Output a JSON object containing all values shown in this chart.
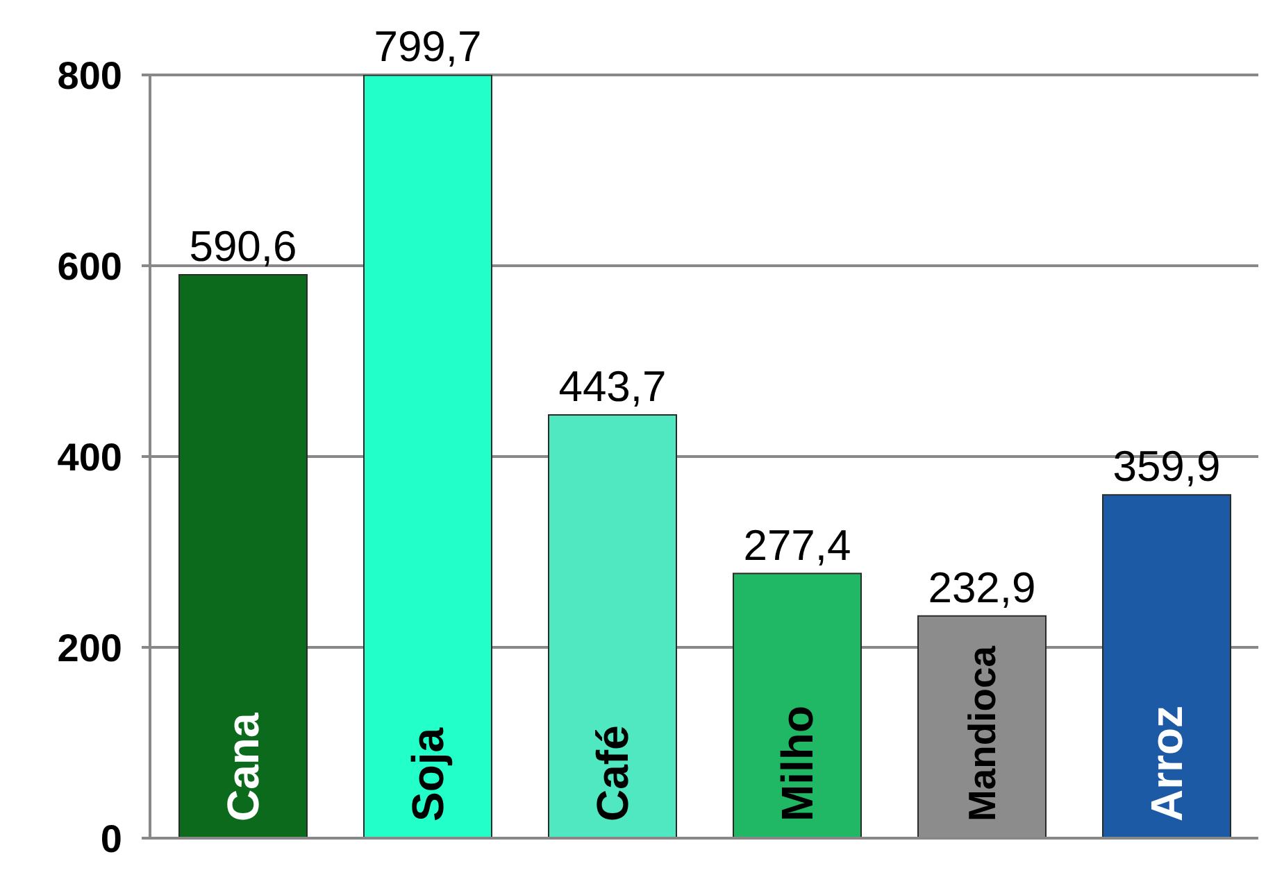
{
  "chart_data": {
    "type": "bar",
    "categories": [
      "Cana",
      "Soja",
      "Café",
      "Milho",
      "Mandioca",
      "Arroz"
    ],
    "values": [
      590.6,
      799.7,
      443.7,
      277.4,
      232.9,
      359.9
    ],
    "value_labels": [
      "590,6",
      "799,7",
      "443,7",
      "277,4",
      "232,9",
      "359,9"
    ],
    "colors": [
      "#0b6a1c",
      "#22ffc8",
      "#50e8c0",
      "#20b865",
      "#8c8c8c",
      "#1d5aa5"
    ],
    "ylim": [
      0,
      800
    ],
    "yticks": [
      0,
      200,
      400,
      600,
      800
    ],
    "grid": "y"
  }
}
